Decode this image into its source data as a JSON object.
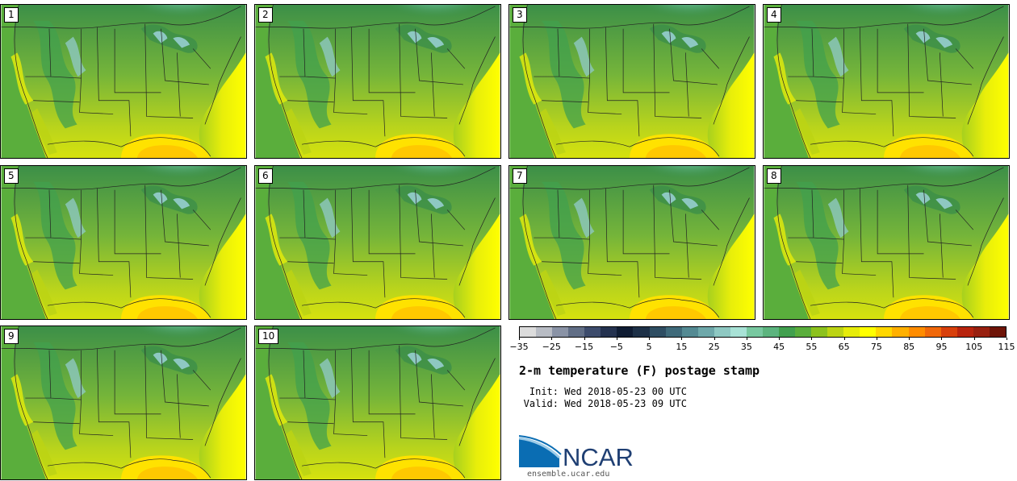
{
  "members": [
    {
      "label": "1"
    },
    {
      "label": "2"
    },
    {
      "label": "3"
    },
    {
      "label": "4"
    },
    {
      "label": "5"
    },
    {
      "label": "6"
    },
    {
      "label": "7"
    },
    {
      "label": "8"
    },
    {
      "label": "9"
    },
    {
      "label": "10"
    }
  ],
  "colorbar": {
    "colors": [
      "#dcdcdc",
      "#b8bcc4",
      "#8a93a6",
      "#616e86",
      "#3d4c6c",
      "#24324f",
      "#0f1c33",
      "#1d3047",
      "#2e4d62",
      "#3f6a7a",
      "#548a93",
      "#6ea8aa",
      "#8ec8c2",
      "#a8e2d6",
      "#78c8a0",
      "#5cb47e",
      "#41a04e",
      "#5aae3c",
      "#8cc21e",
      "#bcd414",
      "#e6ec0a",
      "#ffff00",
      "#ffd700",
      "#ffb000",
      "#ff8c00",
      "#f0680a",
      "#d8400c",
      "#b8240e",
      "#982010",
      "#6e1408"
    ],
    "tick_labels": [
      "−35",
      "−25",
      "−15",
      "−5",
      "5",
      "15",
      "25",
      "35",
      "45",
      "55",
      "65",
      "75",
      "85",
      "95",
      "105",
      "115"
    ]
  },
  "title": "2-m temperature (F) postage stamp",
  "init_label": "Init:",
  "init_value": "Wed 2018-05-23 00 UTC",
  "valid_label": "Valid:",
  "valid_value": "Wed 2018-05-23 09 UTC",
  "logo_text": "NCAR",
  "logo_url": "ensemble.ucar.edu"
}
